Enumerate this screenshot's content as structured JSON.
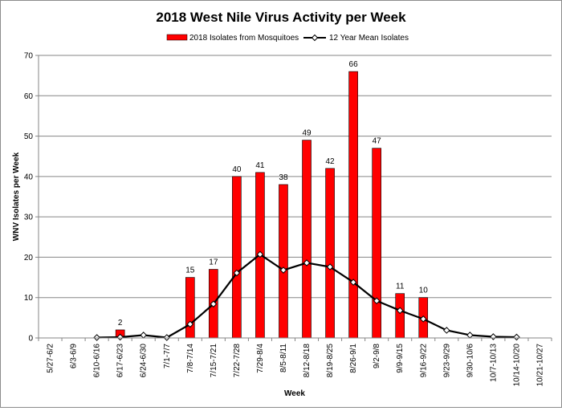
{
  "chart_data": {
    "type": "bar",
    "title": "2018 West Nile Virus Activity per Week",
    "xlabel": "Week",
    "ylabel": "WNV Isolates per Week",
    "ylim": [
      0,
      70
    ],
    "yticks": [
      "0",
      "10",
      "20",
      "30",
      "40",
      "50",
      "60",
      "70"
    ],
    "grid": true,
    "legend_position": "top-center",
    "categories": [
      "5/27-6/2",
      "6/3-6/9",
      "6/10-6/16",
      "6/17-6/23",
      "6/24-6/30",
      "7/1-7/7",
      "7/8-7/14",
      "7/15-7/21",
      "7/22-7/28",
      "7/29-8/4",
      "8/5-8/11",
      "8/12-8/18",
      "8/19-8/25",
      "8/26-9/1",
      "9/2-9/8",
      "9/9-9/15",
      "9/16-9/22",
      "9/23-9/29",
      "9/30-10/6",
      "10/7-10/13",
      "10/14-10/20",
      "10/21-10/27"
    ],
    "series": [
      {
        "name": "2018 Isolates from Mosquitoes",
        "type": "bar",
        "color": "#ff0000",
        "values": [
          null,
          null,
          null,
          2,
          null,
          null,
          15,
          17,
          40,
          41,
          38,
          49,
          42,
          66,
          47,
          11,
          10,
          null,
          null,
          null,
          null,
          null
        ],
        "labels": [
          "",
          "",
          "",
          "2",
          "",
          "",
          "15",
          "17",
          "40",
          "41",
          "38",
          "49",
          "42",
          "66",
          "47",
          "11",
          "10",
          "",
          "",
          "",
          "",
          ""
        ]
      },
      {
        "name": "12 Year Mean Isolates",
        "type": "line",
        "color": "#000000",
        "values": [
          null,
          null,
          0.1,
          0.2,
          0.7,
          0.1,
          3.4,
          8.4,
          16.1,
          20.7,
          16.8,
          18.6,
          17.6,
          13.8,
          9.2,
          6.8,
          4.7,
          1.9,
          0.7,
          0.3,
          0.2,
          null
        ]
      }
    ]
  }
}
